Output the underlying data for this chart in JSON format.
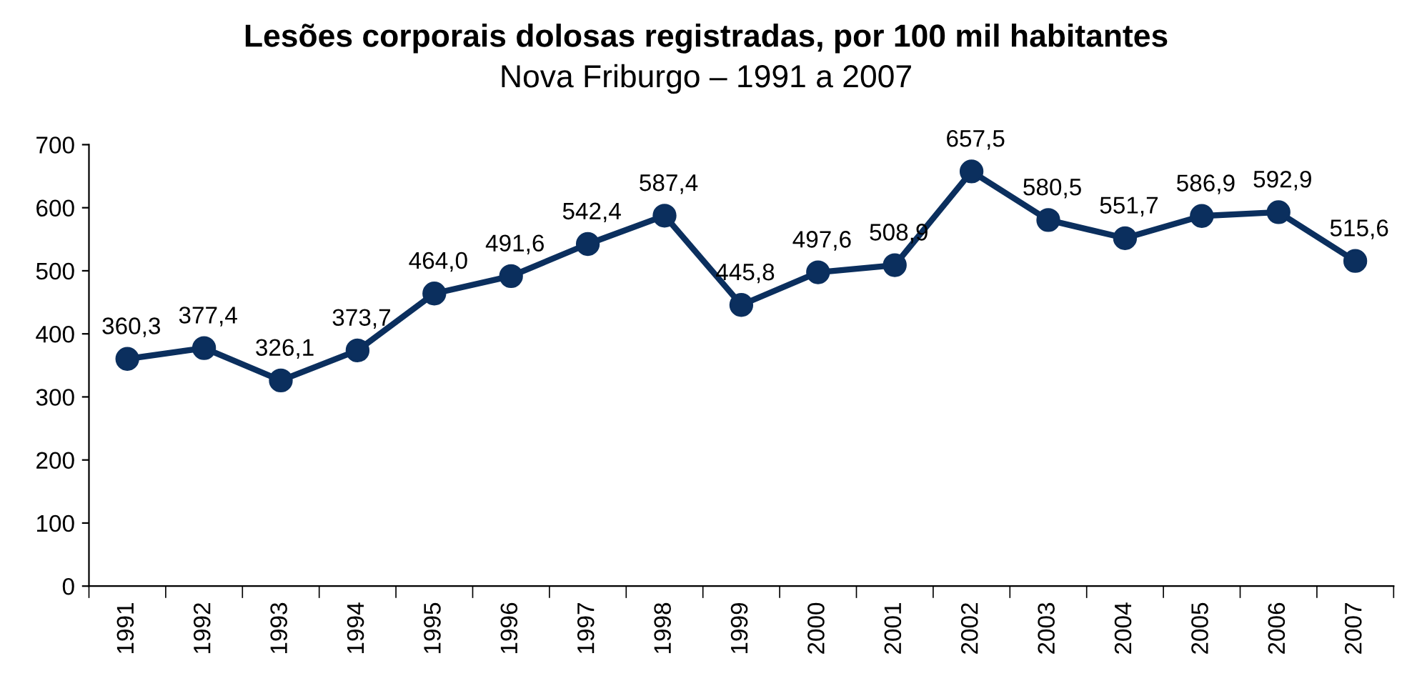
{
  "chart_data": {
    "type": "line",
    "title": "Lesões corporais dolosas registradas, por 100 mil habitantes",
    "subtitle": "Nova Friburgo – 1991 a 2007",
    "categories": [
      "1991",
      "1992",
      "1993",
      "1994",
      "1995",
      "1996",
      "1997",
      "1998",
      "1999",
      "2000",
      "2001",
      "2002",
      "2003",
      "2004",
      "2005",
      "2006",
      "2007"
    ],
    "series": [
      {
        "color": "#0b2f5e",
        "values": [
          360.3,
          377.4,
          326.1,
          373.7,
          464.0,
          491.6,
          542.4,
          587.4,
          445.8,
          497.6,
          508.9,
          657.5,
          580.5,
          551.7,
          586.9,
          592.9,
          515.6
        ],
        "value_labels": [
          "360,3",
          "377,4",
          "326,1",
          "373,7",
          "464,0",
          "491,6",
          "542,4",
          "587,4",
          "445,8",
          "497,6",
          "508,9",
          "657,5",
          "580,5",
          "551,7",
          "586,9",
          "592,9",
          "515,6"
        ]
      }
    ],
    "ylim": [
      0,
      700
    ],
    "yticks": [
      0,
      100,
      200,
      300,
      400,
      500,
      600,
      700
    ],
    "grid": false,
    "legend": false,
    "marker": "circle",
    "line_style": "solid"
  }
}
